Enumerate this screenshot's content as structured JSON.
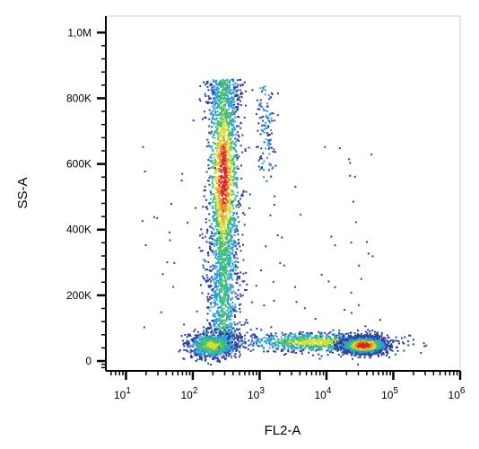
{
  "chart_data": {
    "type": "scatter",
    "title": "",
    "xlabel": "FL2-A",
    "ylabel": "SS-A",
    "x_scale": "log",
    "xlim": [
      5,
      1000000
    ],
    "ylim": [
      -30000,
      1050000
    ],
    "x_ticks": [
      {
        "value": 10,
        "base": "10",
        "exp": "1"
      },
      {
        "value": 100,
        "base": "10",
        "exp": "2"
      },
      {
        "value": 1000,
        "base": "10",
        "exp": "3"
      },
      {
        "value": 10000,
        "base": "10",
        "exp": "4"
      },
      {
        "value": 100000,
        "base": "10",
        "exp": "5"
      },
      {
        "value": 1000000,
        "base": "10",
        "exp": "6"
      }
    ],
    "y_ticks": [
      {
        "value": 0,
        "label": "0"
      },
      {
        "value": 200000,
        "label": "200K"
      },
      {
        "value": 400000,
        "label": "400K"
      },
      {
        "value": 600000,
        "label": "600K"
      },
      {
        "value": 800000,
        "label": "800K"
      },
      {
        "value": 1000000,
        "label": "1,0M"
      }
    ],
    "color_scale": [
      "#2b3f9e",
      "#2f9fd6",
      "#3fbf6f",
      "#d8de2a",
      "#f08a1e",
      "#e0231e"
    ],
    "grid": false,
    "populations": [
      {
        "x_center": 280,
        "x_spread_decades": 0.12,
        "y_min": 30000,
        "y_max": 860000,
        "y_peak": 560000,
        "density": "high"
      },
      {
        "x_center": 190,
        "x_spread_decades": 0.18,
        "y_center": 50000,
        "y_spread": 20000,
        "density": "medium"
      },
      {
        "x_center": 7000,
        "x_spread_decades": 0.55,
        "y_center": 60000,
        "y_spread": 15000,
        "density": "medium"
      },
      {
        "x_center": 35000,
        "x_spread_decades": 0.15,
        "y_center": 50000,
        "y_spread": 12000,
        "density": "high"
      },
      {
        "x_center": 1200,
        "x_spread_decades": 0.08,
        "y_min": 550000,
        "y_max": 840000,
        "density": "low"
      }
    ]
  }
}
